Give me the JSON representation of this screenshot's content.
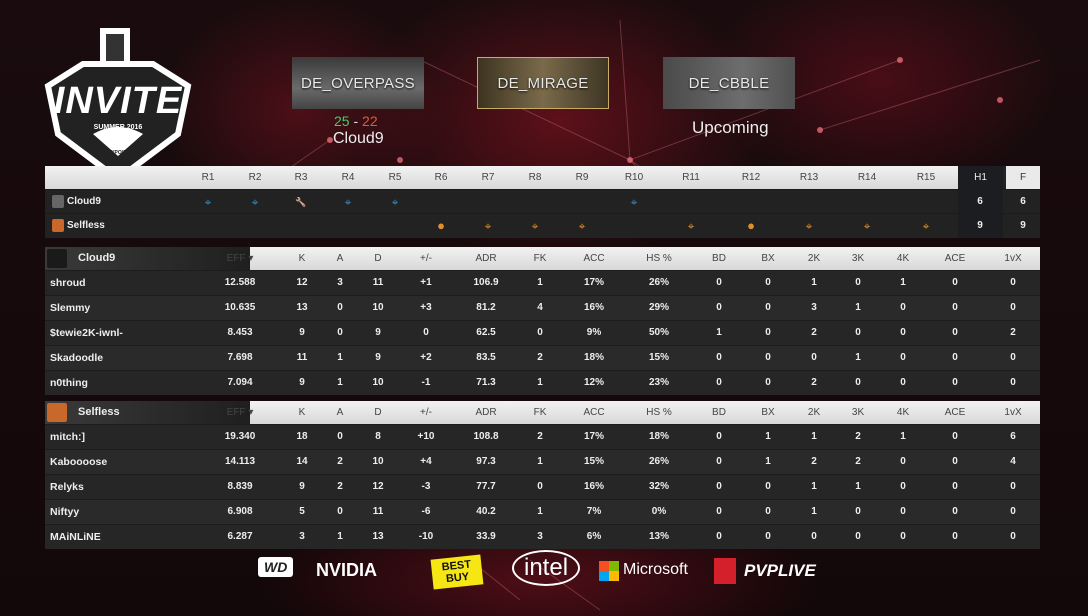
{
  "logo": {
    "title": "INVITE",
    "subtitle": "SUMMER 2016",
    "sponsor": "iBUYPOWER"
  },
  "maps": [
    {
      "name": "DE_OVERPASS",
      "score_a": "25",
      "score_sep": "-",
      "score_b": "22",
      "winner": "Cloud9"
    },
    {
      "name": "DE_MIRAGE",
      "status": "current"
    },
    {
      "name": "DE_CBBLE",
      "status": "Upcoming"
    }
  ],
  "colors": {
    "ct": "#3a8fc2",
    "t": "#e0902a",
    "win": "#3fcf6a",
    "loss": "#e05a3a",
    "current_border": "#c6ad63"
  },
  "rounds": {
    "headers": [
      "R1",
      "R2",
      "R3",
      "R4",
      "R5",
      "R6",
      "R7",
      "R8",
      "R9",
      "R10",
      "R11",
      "R12",
      "R13",
      "R14",
      "R15"
    ],
    "h1_label": "H1",
    "f_label": "F",
    "teams": [
      {
        "name": "Cloud9",
        "h1": "6",
        "f": "6",
        "icons": [
          "target",
          "target",
          "wrench",
          "target",
          "target",
          "",
          "",
          "",
          "",
          "target",
          "",
          "",
          "",
          "",
          ""
        ]
      },
      {
        "name": "Selfless",
        "h1": "9",
        "f": "9",
        "icons": [
          "",
          "",
          "",
          "",
          "",
          "bomb",
          "target",
          "target",
          "target",
          "",
          "target",
          "bomb",
          "target",
          "target",
          "target"
        ]
      }
    ]
  },
  "stat_headers": [
    "EFF ▾",
    "K",
    "A",
    "D",
    "+/-",
    "ADR",
    "FK",
    "ACC",
    "HS %",
    "BD",
    "BX",
    "2K",
    "3K",
    "4K",
    "ACE",
    "1vX"
  ],
  "teams": [
    {
      "name": "Cloud9",
      "players": [
        [
          "shroud",
          "12.588",
          "12",
          "3",
          "11",
          "+1",
          "106.9",
          "1",
          "17%",
          "26%",
          "0",
          "0",
          "1",
          "0",
          "1",
          "0",
          "0"
        ],
        [
          "Slemmy",
          "10.635",
          "13",
          "0",
          "10",
          "+3",
          "81.2",
          "4",
          "16%",
          "29%",
          "0",
          "0",
          "3",
          "1",
          "0",
          "0",
          "0"
        ],
        [
          "$tewie2K-iwnl-",
          "8.453",
          "9",
          "0",
          "9",
          "0",
          "62.5",
          "0",
          "9%",
          "50%",
          "1",
          "0",
          "2",
          "0",
          "0",
          "0",
          "2"
        ],
        [
          "Skadoodle",
          "7.698",
          "11",
          "1",
          "9",
          "+2",
          "83.5",
          "2",
          "18%",
          "15%",
          "0",
          "0",
          "0",
          "1",
          "0",
          "0",
          "0"
        ],
        [
          "n0thing",
          "7.094",
          "9",
          "1",
          "10",
          "-1",
          "71.3",
          "1",
          "12%",
          "23%",
          "0",
          "0",
          "2",
          "0",
          "0",
          "0",
          "0"
        ]
      ]
    },
    {
      "name": "Selfless",
      "players": [
        [
          "mitch:]",
          "19.340",
          "18",
          "0",
          "8",
          "+10",
          "108.8",
          "2",
          "17%",
          "18%",
          "0",
          "1",
          "1",
          "2",
          "1",
          "0",
          "6"
        ],
        [
          "Kaboooose",
          "14.113",
          "14",
          "2",
          "10",
          "+4",
          "97.3",
          "1",
          "15%",
          "26%",
          "0",
          "1",
          "2",
          "2",
          "0",
          "0",
          "4"
        ],
        [
          "Relyks",
          "8.839",
          "9",
          "2",
          "12",
          "-3",
          "77.7",
          "0",
          "16%",
          "32%",
          "0",
          "0",
          "1",
          "1",
          "0",
          "0",
          "0"
        ],
        [
          "Niftyy",
          "6.908",
          "5",
          "0",
          "11",
          "-6",
          "40.2",
          "1",
          "7%",
          "0%",
          "0",
          "0",
          "1",
          "0",
          "0",
          "0",
          "0"
        ],
        [
          "MAiNLiNE",
          "6.287",
          "3",
          "1",
          "13",
          "-10",
          "33.9",
          "3",
          "6%",
          "13%",
          "0",
          "0",
          "0",
          "0",
          "0",
          "0",
          "0"
        ]
      ]
    }
  ],
  "sponsors": [
    "WD",
    "NVIDIA",
    "BEST BUY",
    "intel",
    "Microsoft",
    "PVPLIVE"
  ]
}
